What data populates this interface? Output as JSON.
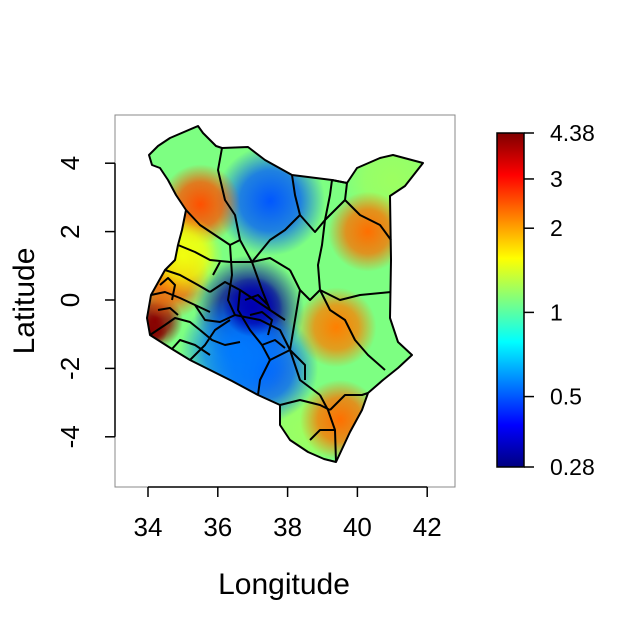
{
  "chart_data": {
    "type": "heatmap",
    "title": "",
    "xlabel": "Longitude",
    "ylabel": "Latitude",
    "xlim": [
      33.0,
      42.8
    ],
    "ylim": [
      -5.5,
      5.5
    ],
    "x_ticks": [
      34,
      36,
      38,
      40,
      42
    ],
    "y_ticks": [
      -4,
      -2,
      0,
      2,
      4
    ],
    "colorbar": {
      "scale": "log",
      "min": 0.28,
      "max": 4.38,
      "ticks": [
        0.28,
        0.5,
        1,
        2,
        3,
        4.38
      ],
      "tick_labels": [
        "0.28",
        "0.5",
        "1",
        "2",
        "3",
        "4.38"
      ],
      "palette": [
        "#00007f",
        "#0000ff",
        "#007fff",
        "#00ffff",
        "#7fff7f",
        "#ffff00",
        "#ff7f00",
        "#ff0000",
        "#7f0000"
      ]
    },
    "hotspots": [
      {
        "lon": 34.2,
        "lat": -0.6,
        "value": 4.2
      },
      {
        "lon": 34.6,
        "lat": 0.6,
        "value": 2.4
      },
      {
        "lon": 35.5,
        "lat": 2.8,
        "value": 2.5
      },
      {
        "lon": 40.3,
        "lat": 2.0,
        "value": 2.3
      },
      {
        "lon": 39.4,
        "lat": -0.8,
        "value": 2.2
      },
      {
        "lon": 39.5,
        "lat": -3.5,
        "value": 2.3
      },
      {
        "lon": 35.0,
        "lat": 1.3,
        "value": 1.5
      }
    ],
    "coldspots": [
      {
        "lon": 36.9,
        "lat": -0.3,
        "value": 0.3
      },
      {
        "lon": 37.5,
        "lat": 2.9,
        "value": 0.5
      },
      {
        "lon": 37.3,
        "lat": -2.0,
        "value": 0.5
      },
      {
        "lon": 36.5,
        "lat": -1.5,
        "value": 0.55
      }
    ],
    "background_value": 1.1
  }
}
